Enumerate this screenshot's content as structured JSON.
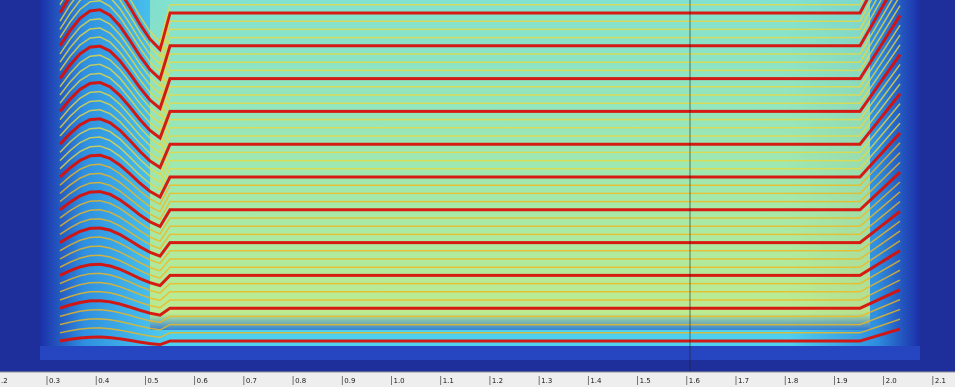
{
  "chart_data": {
    "type": "spectrogram",
    "xlim": [
      0.2045,
      2.145
    ],
    "xticks": [
      {
        "value": 0.2,
        "label": ".2"
      },
      0.3,
      0.4,
      0.5,
      0.6,
      0.7,
      0.8,
      0.9,
      {
        "value": 1,
        "label": "1.0"
      },
      1.1,
      1.2,
      1.3,
      1.4,
      1.5,
      1.6,
      1.7,
      1.8,
      1.9,
      {
        "value": 2,
        "label": "2.0"
      },
      2.1
    ]
  }
}
